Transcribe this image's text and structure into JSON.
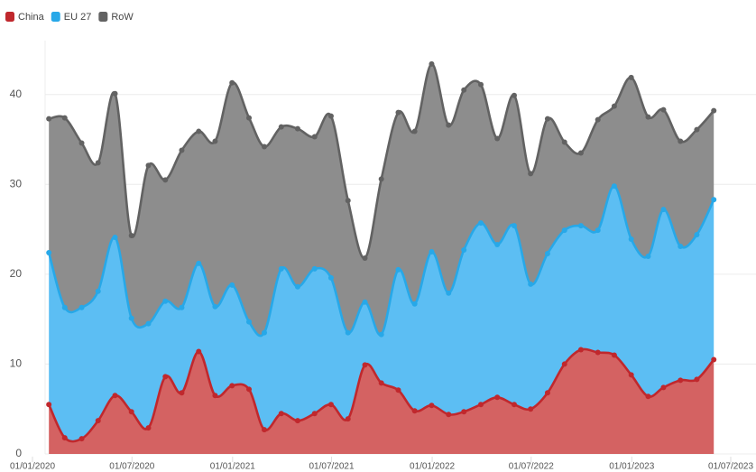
{
  "chart_data": {
    "type": "stacked-area",
    "x": [
      "2020-01-31",
      "2020-02-29",
      "2020-03-31",
      "2020-04-30",
      "2020-05-31",
      "2020-06-30",
      "2020-07-31",
      "2020-08-31",
      "2020-09-30",
      "2020-10-31",
      "2020-11-30",
      "2020-12-31",
      "2021-01-31",
      "2021-02-28",
      "2021-03-31",
      "2021-04-30",
      "2021-05-31",
      "2021-06-30",
      "2021-07-31",
      "2021-08-31",
      "2021-09-30",
      "2021-10-31",
      "2021-11-30",
      "2021-12-31",
      "2022-01-31",
      "2022-02-28",
      "2022-03-31",
      "2022-04-30",
      "2022-05-31",
      "2022-06-30",
      "2022-07-31",
      "2022-08-31",
      "2022-09-30",
      "2022-10-31",
      "2022-11-30",
      "2022-12-31",
      "2023-01-31",
      "2023-02-28",
      "2023-03-31",
      "2023-04-30",
      "2023-05-31"
    ],
    "series": [
      {
        "name": "China",
        "color": "#c0282d",
        "fill": "#d46262",
        "values": [
          5.5,
          1.8,
          1.7,
          3.7,
          6.5,
          4.7,
          2.9,
          8.6,
          6.8,
          11.4,
          6.5,
          7.6,
          7.2,
          2.7,
          4.5,
          3.7,
          4.5,
          5.5,
          3.9,
          9.9,
          7.9,
          7.1,
          4.8,
          5.4,
          4.4,
          4.7,
          5.5,
          6.3,
          5.5,
          5.0,
          6.8,
          10.0,
          11.6,
          11.3,
          11.0,
          8.8,
          6.4,
          7.4,
          8.2,
          8.3,
          10.5
        ]
      },
      {
        "name": "EU 27",
        "color": "#27a8e8",
        "fill": "#5cbef3",
        "values": [
          16.9,
          14.5,
          14.6,
          14.4,
          17.6,
          10.4,
          11.6,
          8.4,
          9.5,
          9.8,
          9.9,
          11.2,
          7.5,
          10.8,
          16.1,
          14.9,
          16.1,
          14.1,
          9.6,
          7.0,
          5.4,
          13.4,
          11.9,
          17.1,
          13.5,
          18.0,
          20.2,
          17.0,
          19.9,
          13.9,
          15.5,
          14.9,
          13.8,
          13.6,
          18.8,
          15.1,
          15.6,
          19.8,
          14.9,
          16.1,
          17.8
        ]
      },
      {
        "name": "RoW",
        "color": "#626262",
        "fill": "#8d8d8d",
        "values": [
          14.9,
          21.1,
          18.3,
          14.3,
          16.0,
          9.2,
          17.6,
          13.5,
          17.5,
          14.7,
          18.4,
          22.5,
          22.7,
          20.7,
          15.8,
          17.6,
          14.7,
          18.0,
          14.7,
          4.9,
          17.3,
          17.5,
          19.2,
          20.9,
          18.7,
          17.8,
          15.4,
          11.8,
          14.5,
          12.3,
          15.0,
          9.8,
          8.1,
          12.3,
          8.9,
          18.0,
          15.5,
          11.1,
          11.7,
          11.7,
          9.9
        ]
      }
    ],
    "xlim": [
      "2020-01-01",
      "2023-07-01"
    ],
    "xticks": [
      {
        "value": "2020-01-01",
        "label": "01/01/2020"
      },
      {
        "value": "2020-07-01",
        "label": "01/07/2020"
      },
      {
        "value": "2021-01-01",
        "label": "01/01/2021"
      },
      {
        "value": "2021-07-01",
        "label": "01/07/2021"
      },
      {
        "value": "2022-01-01",
        "label": "01/01/2022"
      },
      {
        "value": "2022-07-01",
        "label": "01/07/2022"
      },
      {
        "value": "2023-01-01",
        "label": "01/01/2023"
      },
      {
        "value": "2023-07-01",
        "label": "01/07/2023"
      }
    ],
    "ylim": [
      0,
      46
    ],
    "yticks": [
      0,
      10,
      20,
      30,
      40
    ],
    "grid": true,
    "legend": "top-left"
  }
}
